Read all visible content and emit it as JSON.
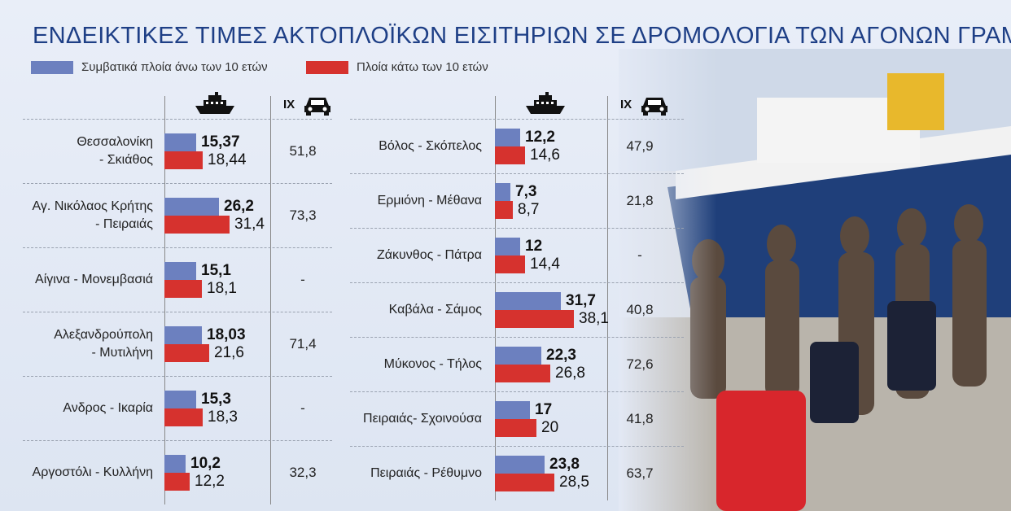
{
  "title": "ΕΝΔΕΙΚΤΙΚΕΣ ΤΙΜΕΣ ΑΚΤΟΠΛΟΪΚΩΝ ΕΙΣΙΤΗΡΙΩΝ ΣΕ ΔΡΟΜΟΛΟΓΙΑ ΤΩΝ ΑΓΟΝΩΝ ΓΡΑΜΜΩΝ",
  "legend": {
    "old": "Συμβατικά πλοία άνω των 10 ετών",
    "new": "Πλοία κάτω των 10 ετών"
  },
  "column_headers": {
    "ship_icon": "ship-icon",
    "car_label": "IX",
    "car_icon": "car-icon"
  },
  "colors": {
    "old_ships": "#6c80bf",
    "new_ships": "#d6322e",
    "title": "#1e3f86"
  },
  "chart_data": [
    {
      "type": "bar",
      "orientation": "horizontal",
      "title": "ΕΝΔΕΙΚΤΙΚΕΣ ΤΙΜΕΣ ΑΚΤΟΠΛΟΪΚΩΝ ΕΙΣΙΤΗΡΙΩΝ ΣΕ ΔΡΟΜΟΛΟΓΙΑ ΤΩΝ ΑΓΟΝΩΝ ΓΡΑΜΜΩΝ",
      "categories": [
        [
          "Θεσσαλονίκη",
          "- Σκιάθος"
        ],
        [
          "Αγ. Νικόλαος Κρήτης",
          "- Πειραιάς"
        ],
        [
          "Αίγινα - Μονεμβασιά"
        ],
        [
          "Αλεξανδρούπολη",
          "- Μυτιλήνη"
        ],
        [
          "Ανδρος - Ικαρία"
        ],
        [
          "Αργοστόλι - Κυλλήνη"
        ]
      ],
      "series": [
        {
          "name": "Συμβατικά πλοία άνω των 10 ετών",
          "values": [
            15.37,
            26.2,
            15.1,
            18.03,
            15.3,
            10.2
          ],
          "labels": [
            "15,37",
            "26,2",
            "15,1",
            "18,03",
            "15,3",
            "10,2"
          ]
        },
        {
          "name": "Πλοία κάτω των 10 ετών",
          "values": [
            18.44,
            31.4,
            18.1,
            21.6,
            18.3,
            12.2
          ],
          "labels": [
            "18,44",
            "31,4",
            "18,1",
            "21,6",
            "18,3",
            "12,2"
          ]
        }
      ],
      "car_prices": [
        "51,8",
        "73,3",
        "-",
        "71,4",
        "-",
        "32,3"
      ]
    },
    {
      "type": "bar",
      "orientation": "horizontal",
      "categories": [
        [
          "Βόλος - Σκόπελος"
        ],
        [
          "Ερμιόνη - Μέθανα"
        ],
        [
          "Ζάκυνθος - Πάτρα"
        ],
        [
          "Καβάλα - Σάμος"
        ],
        [
          "Μύκονος - Τήλος"
        ],
        [
          "Πειραιάς- Σχοινούσα"
        ],
        [
          "Πειραιάς - Ρέθυμνο"
        ]
      ],
      "series": [
        {
          "name": "Συμβατικά πλοία άνω των 10 ετών",
          "values": [
            12.2,
            7.3,
            12,
            31.7,
            22.3,
            17,
            23.8
          ],
          "labels": [
            "12,2",
            "7,3",
            "12",
            "31,7",
            "22,3",
            "17",
            "23,8"
          ]
        },
        {
          "name": "Πλοία κάτω των 10 ετών",
          "values": [
            14.6,
            8.7,
            14.4,
            38.1,
            26.8,
            20,
            28.5
          ],
          "labels": [
            "14,6",
            "8,7",
            "14,4",
            "38,1",
            "26,8",
            "20",
            "28,5"
          ]
        }
      ],
      "car_prices": [
        "47,9",
        "21,8",
        "-",
        "40,8",
        "72,6",
        "41,8",
        "63,7"
      ]
    }
  ]
}
